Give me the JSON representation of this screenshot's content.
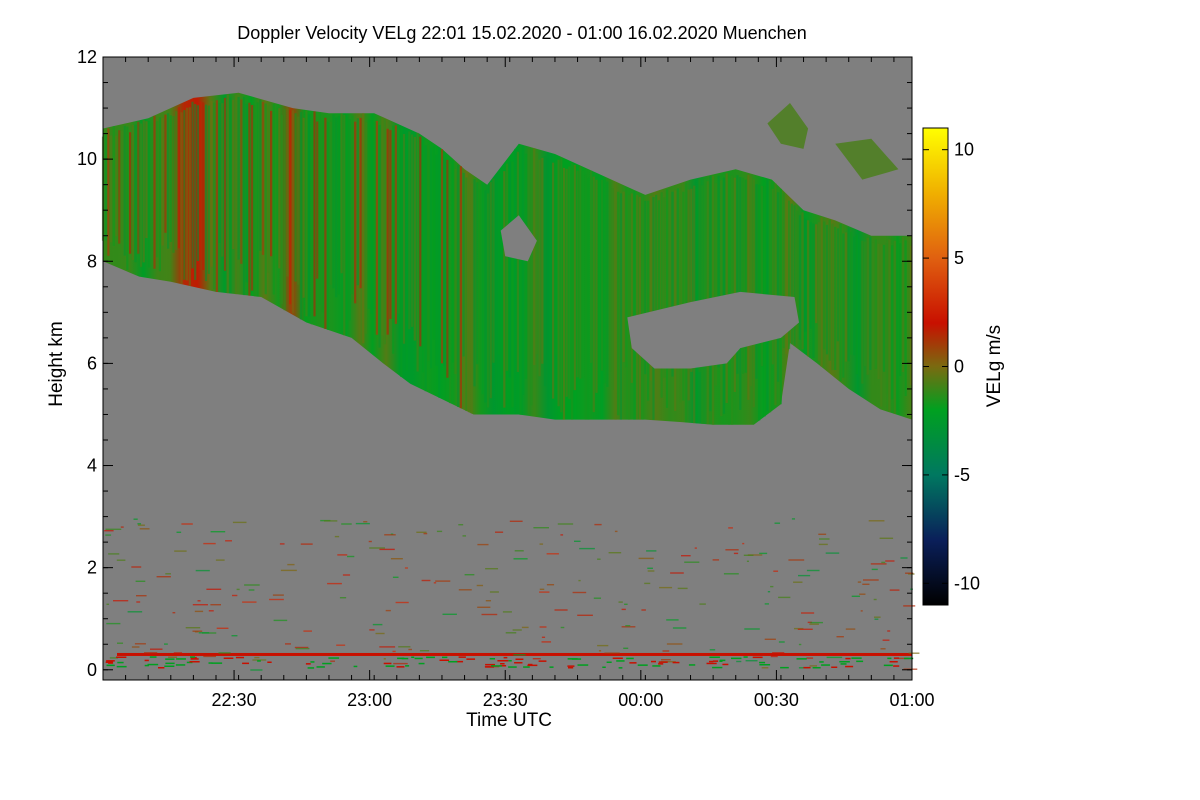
{
  "chart_data": {
    "type": "heatmap",
    "title": "Doppler Velocity VELg   22:01 15.02.2020 - 01:00 16.02.2020 Muenchen",
    "xlabel": "Time UTC",
    "ylabel": "Height km",
    "xlim": [
      0,
      179
    ],
    "ylim": [
      -0.2,
      12
    ],
    "x_ticks": [
      {
        "value": 29,
        "label": "22:30"
      },
      {
        "value": 59,
        "label": "23:00"
      },
      {
        "value": 89,
        "label": "23:30"
      },
      {
        "value": 119,
        "label": "00:00"
      },
      {
        "value": 149,
        "label": "00:30"
      },
      {
        "value": 179,
        "label": "01:00"
      }
    ],
    "y_ticks": [
      {
        "value": 0,
        "label": "0"
      },
      {
        "value": 2,
        "label": "2"
      },
      {
        "value": 4,
        "label": "4"
      },
      {
        "value": 6,
        "label": "6"
      },
      {
        "value": 8,
        "label": "8"
      },
      {
        "value": 10,
        "label": "10"
      },
      {
        "value": 12,
        "label": "12"
      }
    ],
    "colorbar": {
      "label": "VELg m/s",
      "range": [
        -11,
        11
      ],
      "ticks": [
        {
          "value": 10,
          "label": "10"
        },
        {
          "value": 5,
          "label": "5"
        },
        {
          "value": 0,
          "label": "0"
        },
        {
          "value": -5,
          "label": "-5"
        },
        {
          "value": -10,
          "label": "-10"
        }
      ],
      "stops": [
        {
          "value": -11,
          "color": "#000000"
        },
        {
          "value": -8,
          "color": "#0a1f5a"
        },
        {
          "value": -5,
          "color": "#007860"
        },
        {
          "value": -2,
          "color": "#00a020"
        },
        {
          "value": 0,
          "color": "#7a6a10"
        },
        {
          "value": 2,
          "color": "#c81000"
        },
        {
          "value": 5,
          "color": "#e06010"
        },
        {
          "value": 8,
          "color": "#f0b000"
        },
        {
          "value": 11,
          "color": "#ffff00"
        }
      ]
    },
    "background_color": "#7f7f7f",
    "cloud_layer": {
      "typical_velocity": -1.5,
      "top_km": [
        {
          "x": 0,
          "y": 10.6
        },
        {
          "x": 10,
          "y": 10.8
        },
        {
          "x": 20,
          "y": 11.2
        },
        {
          "x": 30,
          "y": 11.3
        },
        {
          "x": 42,
          "y": 11.0
        },
        {
          "x": 50,
          "y": 10.9
        },
        {
          "x": 60,
          "y": 10.9
        },
        {
          "x": 70,
          "y": 10.5
        },
        {
          "x": 75,
          "y": 10.2
        },
        {
          "x": 80,
          "y": 9.8
        },
        {
          "x": 85,
          "y": 9.5
        },
        {
          "x": 92,
          "y": 10.3
        },
        {
          "x": 100,
          "y": 10.1
        },
        {
          "x": 110,
          "y": 9.7
        },
        {
          "x": 120,
          "y": 9.3
        },
        {
          "x": 130,
          "y": 9.6
        },
        {
          "x": 140,
          "y": 9.8
        },
        {
          "x": 148,
          "y": 9.6
        },
        {
          "x": 155,
          "y": 9.0
        },
        {
          "x": 162,
          "y": 8.8
        },
        {
          "x": 170,
          "y": 8.5
        },
        {
          "x": 179,
          "y": 8.5
        }
      ],
      "base_km": [
        {
          "x": 0,
          "y": 8.0
        },
        {
          "x": 8,
          "y": 7.7
        },
        {
          "x": 15,
          "y": 7.6
        },
        {
          "x": 25,
          "y": 7.4
        },
        {
          "x": 35,
          "y": 7.3
        },
        {
          "x": 45,
          "y": 6.8
        },
        {
          "x": 55,
          "y": 6.5
        },
        {
          "x": 62,
          "y": 6.0
        },
        {
          "x": 68,
          "y": 5.6
        },
        {
          "x": 75,
          "y": 5.3
        },
        {
          "x": 82,
          "y": 5.0
        },
        {
          "x": 92,
          "y": 5.0
        },
        {
          "x": 100,
          "y": 4.9
        },
        {
          "x": 110,
          "y": 4.9
        },
        {
          "x": 120,
          "y": 4.9
        },
        {
          "x": 128,
          "y": 4.85
        },
        {
          "x": 135,
          "y": 4.8
        },
        {
          "x": 144,
          "y": 4.8
        },
        {
          "x": 150,
          "y": 5.2
        },
        {
          "x": 152,
          "y": 6.4
        },
        {
          "x": 158,
          "y": 6.0
        },
        {
          "x": 165,
          "y": 5.5
        },
        {
          "x": 172,
          "y": 5.1
        },
        {
          "x": 179,
          "y": 4.9
        }
      ],
      "gaps": [
        {
          "points": [
            {
              "x": 88,
              "y": 8.6
            },
            {
              "x": 92,
              "y": 8.9
            },
            {
              "x": 96,
              "y": 8.4
            },
            {
              "x": 94,
              "y": 8.0
            },
            {
              "x": 89,
              "y": 8.1
            }
          ]
        },
        {
          "points": [
            {
              "x": 116,
              "y": 6.9
            },
            {
              "x": 130,
              "y": 7.2
            },
            {
              "x": 141,
              "y": 7.4
            },
            {
              "x": 153,
              "y": 7.3
            },
            {
              "x": 154,
              "y": 6.8
            },
            {
              "x": 150,
              "y": 6.5
            },
            {
              "x": 141,
              "y": 6.3
            },
            {
              "x": 138,
              "y": 6.0
            },
            {
              "x": 130,
              "y": 5.9
            },
            {
              "x": 122,
              "y": 5.9
            },
            {
              "x": 117,
              "y": 6.3
            }
          ]
        }
      ],
      "fragments": [
        {
          "points": [
            {
              "x": 147,
              "y": 10.7
            },
            {
              "x": 152,
              "y": 11.1
            },
            {
              "x": 156,
              "y": 10.6
            },
            {
              "x": 155,
              "y": 10.2
            },
            {
              "x": 150,
              "y": 10.3
            }
          ]
        },
        {
          "points": [
            {
              "x": 162,
              "y": 10.3
            },
            {
              "x": 170,
              "y": 10.4
            },
            {
              "x": 176,
              "y": 9.8
            },
            {
              "x": 168,
              "y": 9.6
            }
          ]
        }
      ]
    },
    "ground_band": {
      "height_km": 0.3,
      "velocity": 2
    }
  }
}
